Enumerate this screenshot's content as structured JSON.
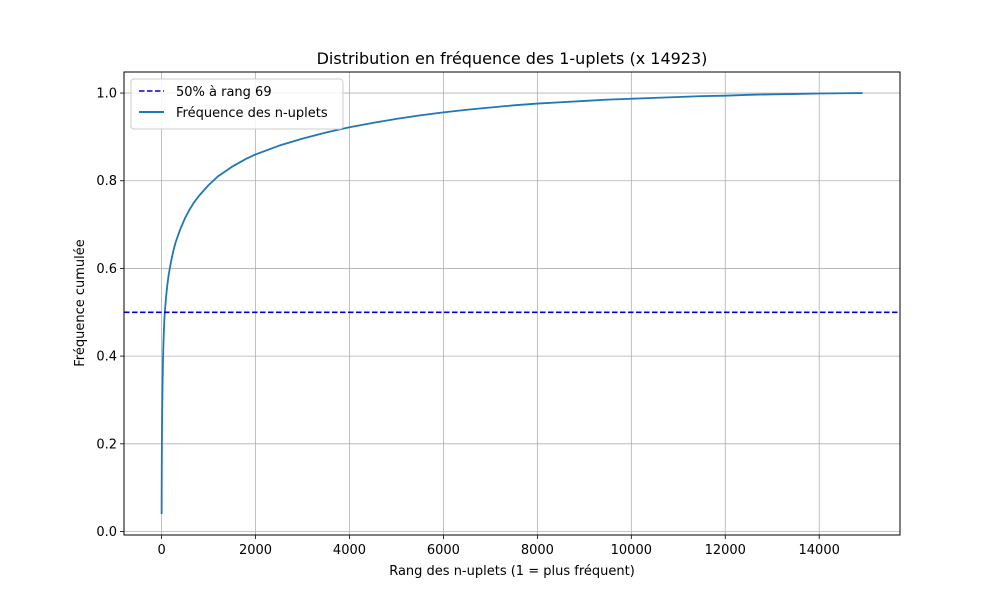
{
  "chart_data": {
    "type": "line",
    "title": "Distribution en fréquence des 1-uplets (x 14923)",
    "xlabel": "Rang des n-uplets (1 = plus fréquent)",
    "ylabel": "Fréquence cumulée",
    "xlim": [
      -800,
      15720
    ],
    "ylim": [
      -0.008,
      1.048
    ],
    "xticks": [
      0,
      2000,
      4000,
      6000,
      8000,
      10000,
      12000,
      14000
    ],
    "yticks": [
      0.0,
      0.2,
      0.4,
      0.6,
      0.8,
      1.0
    ],
    "xtick_labels": [
      "0",
      "2000",
      "4000",
      "6000",
      "8000",
      "10000",
      "12000",
      "14000"
    ],
    "ytick_labels": [
      "0.0",
      "0.2",
      "0.4",
      "0.6",
      "0.8",
      "1.0"
    ],
    "grid": true,
    "legend_position": "top-left",
    "series": [
      {
        "name": "Fréquence des n-uplets",
        "style": "solid",
        "color": "#1f77b4",
        "x": [
          1,
          2,
          5,
          10,
          20,
          30,
          40,
          50,
          60,
          69,
          80,
          100,
          120,
          150,
          200,
          250,
          300,
          400,
          500,
          600,
          700,
          800,
          1000,
          1200,
          1500,
          1800,
          2000,
          2500,
          3000,
          3500,
          4000,
          4500,
          5000,
          5500,
          6000,
          6500,
          7000,
          7500,
          8000,
          8500,
          9000,
          9500,
          10000,
          10500,
          11000,
          11500,
          12000,
          12500,
          13000,
          13500,
          14000,
          14500,
          14923
        ],
        "y": [
          0.04,
          0.09,
          0.17,
          0.25,
          0.33,
          0.39,
          0.43,
          0.46,
          0.485,
          0.5,
          0.515,
          0.54,
          0.56,
          0.585,
          0.615,
          0.64,
          0.66,
          0.69,
          0.715,
          0.735,
          0.752,
          0.766,
          0.79,
          0.81,
          0.832,
          0.85,
          0.86,
          0.88,
          0.896,
          0.91,
          0.922,
          0.932,
          0.941,
          0.949,
          0.956,
          0.962,
          0.967,
          0.972,
          0.976,
          0.979,
          0.982,
          0.985,
          0.987,
          0.989,
          0.991,
          0.993,
          0.994,
          0.996,
          0.997,
          0.998,
          0.999,
          0.9995,
          1.0
        ]
      },
      {
        "name": "50% à rang 69",
        "style": "dashed",
        "color": "#0000cd",
        "y_constant": 0.5
      }
    ]
  }
}
